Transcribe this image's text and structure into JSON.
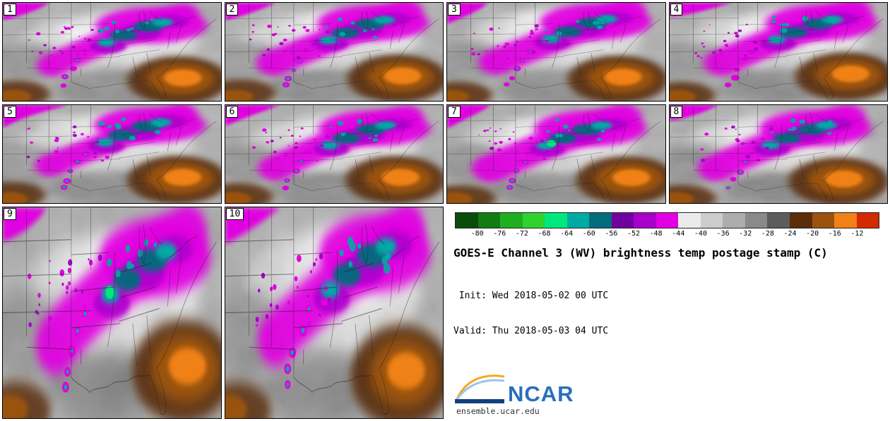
{
  "panels": {
    "labels": [
      "1",
      "2",
      "3",
      "4",
      "5",
      "6",
      "7",
      "8",
      "9",
      "10"
    ]
  },
  "colorbar": {
    "ticks": [
      "-80",
      "-76",
      "-72",
      "-68",
      "-64",
      "-60",
      "-56",
      "-52",
      "-48",
      "-44",
      "-40",
      "-36",
      "-32",
      "-28",
      "-24",
      "-20",
      "-16",
      "-12"
    ],
    "colors": [
      "#0a4d0a",
      "#117c11",
      "#1fae1f",
      "#2ed32e",
      "#00e87b",
      "#00aaa4",
      "#006c7c",
      "#70009e",
      "#aa00cc",
      "#e100e1",
      "#ebebeb",
      "#cccccc",
      "#adadad",
      "#8a8a8a",
      "#5c5c5c",
      "#5a2d08",
      "#9a520e",
      "#ef8118",
      "#d42a00"
    ]
  },
  "info": {
    "title": "GOES-E Channel 3 (WV) brightness temp postage stamp (C)",
    "init": " Init: Wed 2018-05-02 00 UTC",
    "valid": "Valid: Thu 2018-05-03 04 UTC",
    "logo_text": "NCAR",
    "logo_url": "ensemble.ucar.edu"
  },
  "chart_data": {
    "type": "heatmap",
    "title": "GOES-E Channel 3 (WV) brightness temp postage stamp (C)",
    "init_time": "Wed 2018-05-02 00 UTC",
    "valid_time": "Thu 2018-05-03 04 UTC",
    "panels": [
      "1",
      "2",
      "3",
      "4",
      "5",
      "6",
      "7",
      "8",
      "9",
      "10"
    ],
    "variable": "GOES-E Channel 3 (WV) brightness temperature",
    "units": "C",
    "colorbar": {
      "tick_values": [
        -80,
        -76,
        -72,
        -68,
        -64,
        -60,
        -56,
        -52,
        -48,
        -44,
        -40,
        -36,
        -32,
        -28,
        -24,
        -20,
        -16,
        -12
      ],
      "segment_colors": [
        "#0a4d0a",
        "#117c11",
        "#1fae1f",
        "#2ed32e",
        "#00e87b",
        "#00aaa4",
        "#006c7c",
        "#70009e",
        "#aa00cc",
        "#e100e1",
        "#ebebeb",
        "#cccccc",
        "#adadad",
        "#8a8a8a",
        "#5c5c5c",
        "#5a2d08",
        "#9a520e",
        "#ef8118",
        "#d42a00"
      ]
    },
    "legend_position": "bottom-right",
    "source": "ensemble.ucar.edu"
  }
}
